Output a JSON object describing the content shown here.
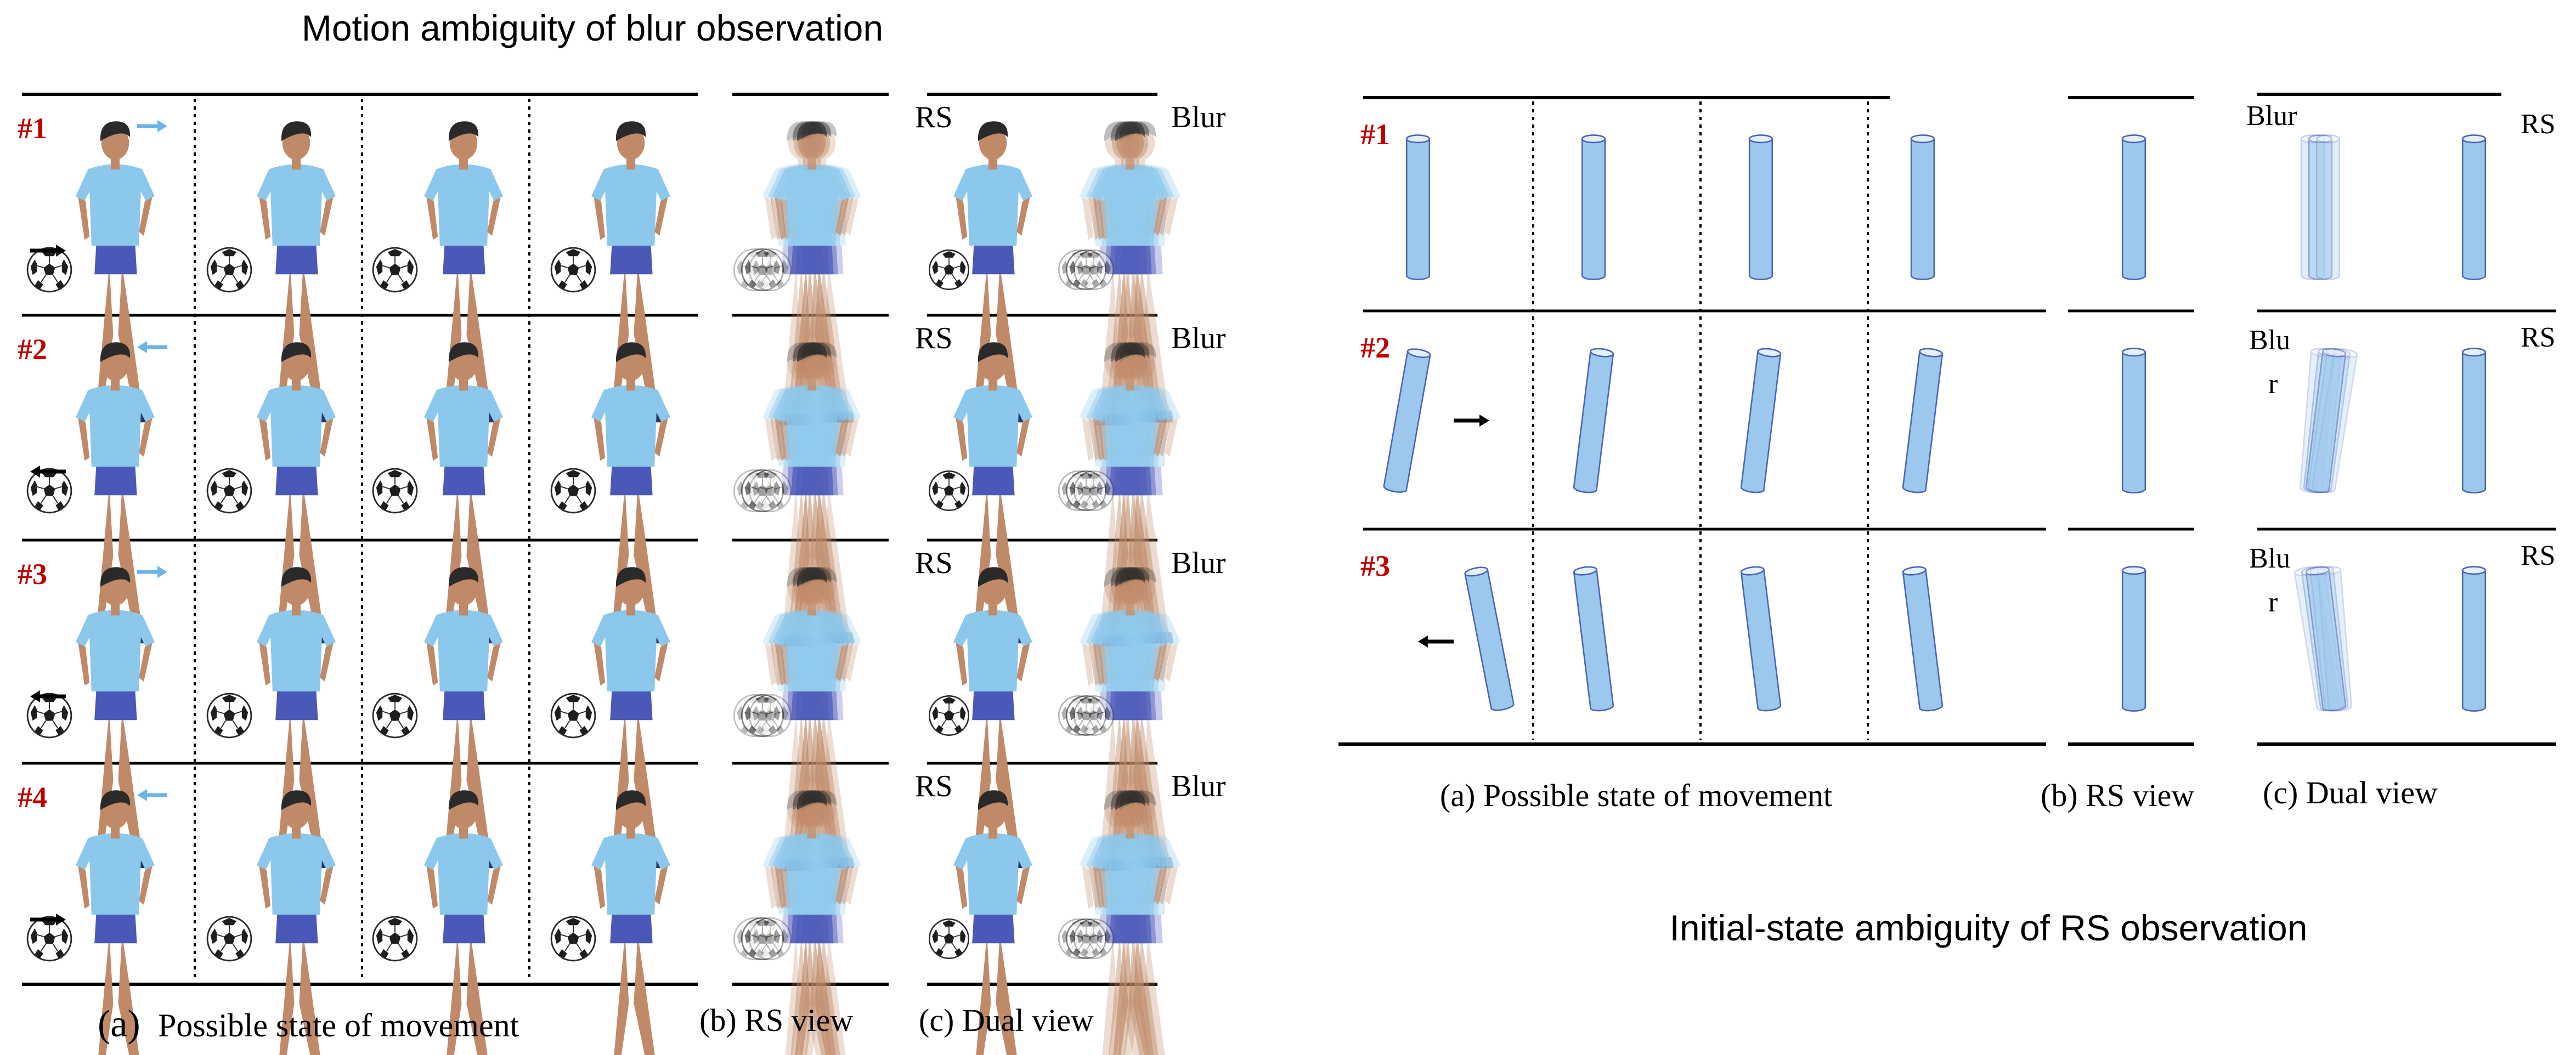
{
  "left_panel": {
    "title": "Motion ambiguity of blur observation",
    "rows": [
      {
        "label": "#1",
        "person_arrow": "right",
        "ball_arrow": "right"
      },
      {
        "label": "#2",
        "person_arrow": "left",
        "ball_arrow": "left"
      },
      {
        "label": "#3",
        "person_arrow": "right",
        "ball_arrow": "left"
      },
      {
        "label": "#4",
        "person_arrow": "left",
        "ball_arrow": "right"
      }
    ],
    "dual_labels": {
      "rs": "RS",
      "blur": "Blur"
    },
    "captions": {
      "a_prefix": "(a)",
      "a_text": "Possible state of movement",
      "b": "(b) RS view",
      "c": "(c) Dual view"
    }
  },
  "right_panel": {
    "title": "Initial-state ambiguity of RS observation",
    "rows": [
      {
        "label": "#1",
        "arrow": "none",
        "blur_label": "Blur",
        "rs_label": "RS"
      },
      {
        "label": "#2",
        "arrow": "right",
        "blur_label_1": "Blu",
        "blur_label_2": "r",
        "rs_label": "RS"
      },
      {
        "label": "#3",
        "arrow": "left",
        "blur_label_1": "Blu",
        "blur_label_2": "r",
        "rs_label": "RS"
      }
    ],
    "captions": {
      "a": "(a) Possible state of movement",
      "b": "(b) RS view",
      "c": "(c) Dual view"
    }
  },
  "colors": {
    "label_red": "#c00000",
    "shirt": "#8cc8ec",
    "shorts": "#4a58b8",
    "skin": "#c08a68",
    "hair": "#2a2a2a",
    "cylinder_fill": "#9cc8ee",
    "cylinder_stroke": "#4a64b4",
    "arrow_blue": "#6ab4e8"
  }
}
